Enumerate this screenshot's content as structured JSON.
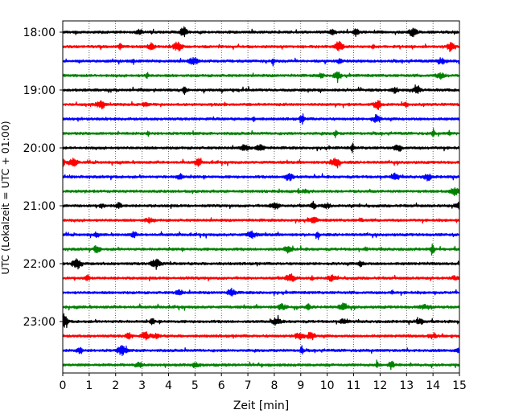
{
  "chart_data": {
    "type": "line",
    "title": "",
    "xlabel": "Zeit  [min]",
    "ylabel": "UTC (Lokalzeit = UTC + 01:00)",
    "xlim": [
      0,
      15
    ],
    "x_ticks": [
      "0",
      "1",
      "2",
      "3",
      "4",
      "5",
      "6",
      "7",
      "8",
      "9",
      "10",
      "11",
      "12",
      "13",
      "14",
      "15"
    ],
    "y_ticks": [
      "18:00",
      "19:00",
      "20:00",
      "21:00",
      "22:00",
      "23:00"
    ],
    "vertical_grid": true,
    "grid_style": "dotted",
    "colors": [
      "#000000",
      "#ff0000",
      "#0000ff",
      "#008000"
    ],
    "series": [
      {
        "start": "18:00",
        "color": "#000000"
      },
      {
        "start": "18:15",
        "color": "#ff0000"
      },
      {
        "start": "18:30",
        "color": "#0000ff"
      },
      {
        "start": "18:45",
        "color": "#008000"
      },
      {
        "start": "19:00",
        "color": "#000000"
      },
      {
        "start": "19:15",
        "color": "#ff0000"
      },
      {
        "start": "19:30",
        "color": "#0000ff"
      },
      {
        "start": "19:45",
        "color": "#008000"
      },
      {
        "start": "20:00",
        "color": "#000000"
      },
      {
        "start": "20:15",
        "color": "#ff0000"
      },
      {
        "start": "20:30",
        "color": "#0000ff"
      },
      {
        "start": "20:45",
        "color": "#008000"
      },
      {
        "start": "21:00",
        "color": "#000000"
      },
      {
        "start": "21:15",
        "color": "#ff0000"
      },
      {
        "start": "21:30",
        "color": "#0000ff"
      },
      {
        "start": "21:45",
        "color": "#008000"
      },
      {
        "start": "22:00",
        "color": "#000000"
      },
      {
        "start": "22:15",
        "color": "#ff0000"
      },
      {
        "start": "22:30",
        "color": "#0000ff"
      },
      {
        "start": "22:45",
        "color": "#008000"
      },
      {
        "start": "23:00",
        "color": "#000000"
      },
      {
        "start": "23:15",
        "color": "#ff0000"
      },
      {
        "start": "23:30",
        "color": "#0000ff"
      },
      {
        "start": "23:45",
        "color": "#008000"
      }
    ]
  }
}
